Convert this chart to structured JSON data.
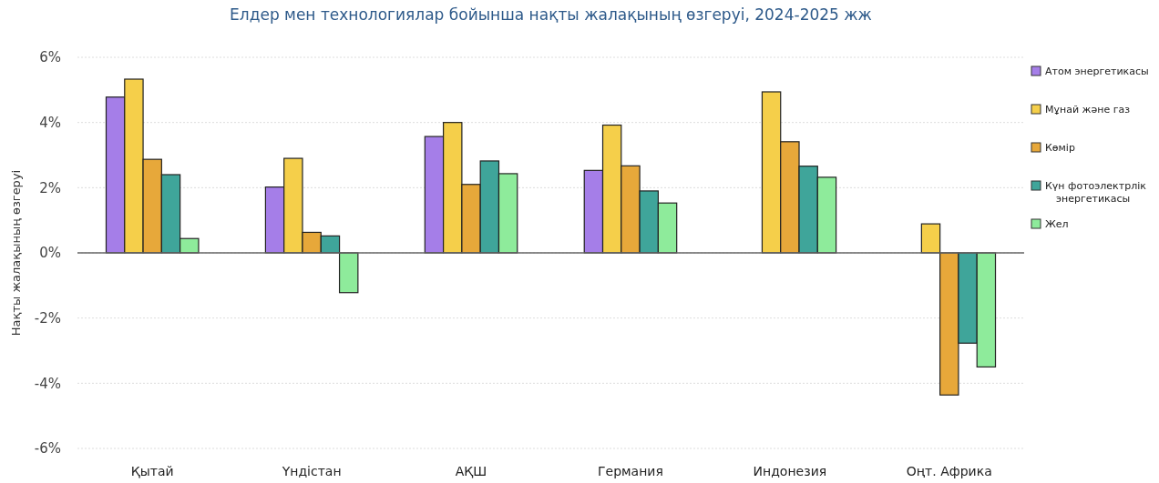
{
  "chart_data": {
    "type": "bar",
    "title": "Елдер мен технологиялар бойынша нақты жалақының өзгеруі, 2024-2025 жж",
    "ylabel": "Нақты жалақының өзгеруі",
    "categories": [
      "Қытай",
      "Үндістан",
      "АҚШ",
      "Германия",
      "Индонезия",
      "Оңт. Африка"
    ],
    "series": [
      {
        "name": "Атом энергетикасы",
        "color": "#a57ee8",
        "values": [
          4.78,
          2.02,
          3.57,
          2.53,
          null,
          null
        ]
      },
      {
        "name": "Мұнай және газ",
        "color": "#f5cf4a",
        "values": [
          5.33,
          2.9,
          4.0,
          3.92,
          4.94,
          0.89
        ]
      },
      {
        "name": "Көмір",
        "color": "#e7a83a",
        "values": [
          2.87,
          0.63,
          2.1,
          2.67,
          3.41,
          -4.36
        ]
      },
      {
        "name": "Күн фотоэлектрлік энергетикасы",
        "color": "#3fa59a",
        "values": [
          2.4,
          0.52,
          2.82,
          1.9,
          2.66,
          -2.77
        ]
      },
      {
        "name": "Жел",
        "color": "#8eeb9b",
        "values": [
          0.44,
          -1.22,
          2.43,
          1.53,
          2.32,
          -3.5
        ]
      }
    ],
    "ylim": [
      -6,
      6
    ],
    "yticks": [
      {
        "value": -6,
        "label": "-6%"
      },
      {
        "value": -4,
        "label": "-4%"
      },
      {
        "value": -2,
        "label": "-2%"
      },
      {
        "value": 0,
        "label": "0%"
      },
      {
        "value": 2,
        "label": "2%"
      },
      {
        "value": 4,
        "label": "4%"
      },
      {
        "value": 6,
        "label": "6%"
      }
    ],
    "grid": "y",
    "legend": "right"
  }
}
